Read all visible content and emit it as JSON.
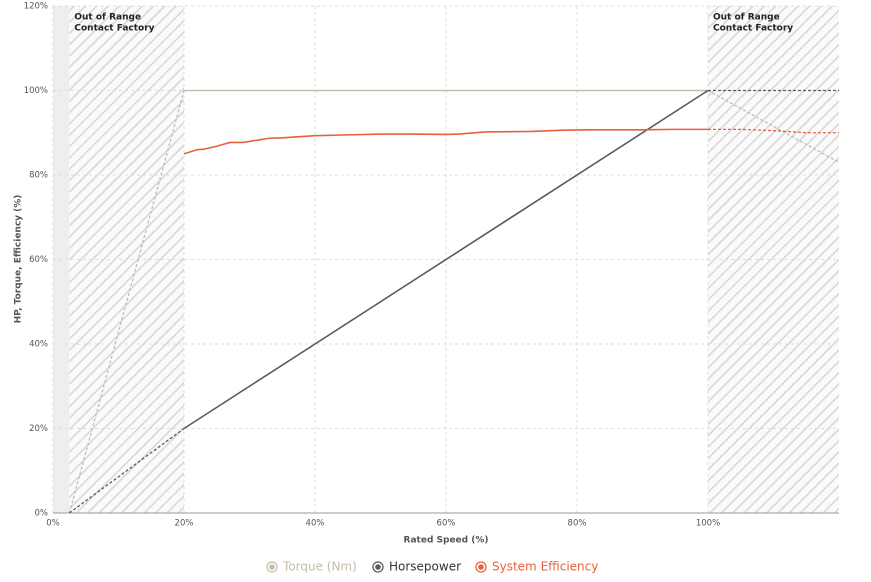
{
  "chart_data": {
    "type": "line",
    "xlabel": "Rated Speed (%)",
    "ylabel": "HP, Torque, Efficiency (%)",
    "xlim": [
      0,
      120
    ],
    "ylim": [
      0,
      120
    ],
    "xticks": [
      {
        "value": 0,
        "label": "0%"
      },
      {
        "value": 20,
        "label": "20%"
      },
      {
        "value": 40,
        "label": "40%"
      },
      {
        "value": 60,
        "label": "60%"
      },
      {
        "value": 80,
        "label": "80%"
      },
      {
        "value": 100,
        "label": "100%"
      }
    ],
    "yticks": [
      {
        "value": 0,
        "label": "0%"
      },
      {
        "value": 20,
        "label": "20%"
      },
      {
        "value": 40,
        "label": "40%"
      },
      {
        "value": 60,
        "label": "60%"
      },
      {
        "value": 80,
        "label": "80%"
      },
      {
        "value": 100,
        "label": "100%"
      },
      {
        "value": 120,
        "label": "120%"
      }
    ],
    "grid": true,
    "regions": [
      {
        "xlim": [
          0,
          2.5
        ],
        "style": "solid"
      },
      {
        "xlim": [
          2.5,
          20
        ],
        "style": "hatched",
        "label": [
          "Out of Range",
          "Contact Factory"
        ]
      },
      {
        "xlim": [
          100,
          120
        ],
        "style": "hatched",
        "label": [
          "Out of Range",
          "Contact Factory"
        ]
      }
    ],
    "series": [
      {
        "name": "Torque (Nm)",
        "color": "#c4bca8",
        "x": [
          2.5,
          20,
          100,
          120
        ],
        "values": [
          0,
          100,
          100,
          83
        ]
      },
      {
        "name": "Horsepower",
        "color": "#5b5b5b",
        "x": [
          2.5,
          20,
          100,
          120
        ],
        "values": [
          0,
          20,
          100,
          100
        ]
      },
      {
        "name": "System Efficiency",
        "color": "#e8603c",
        "x": [
          20,
          21,
          22,
          23,
          25,
          27,
          29,
          33,
          35,
          40,
          45,
          50,
          55,
          60,
          62,
          66,
          73,
          78,
          82,
          90,
          95,
          100,
          105,
          110,
          115,
          120
        ],
        "values": [
          85,
          85.5,
          86,
          86.1,
          86.8,
          87.7,
          87.7,
          88.7,
          88.8,
          89.3,
          89.5,
          89.7,
          89.7,
          89.6,
          89.7,
          90.2,
          90.3,
          90.6,
          90.7,
          90.7,
          90.8,
          90.8,
          90.8,
          90.5,
          90,
          90
        ]
      }
    ]
  }
}
